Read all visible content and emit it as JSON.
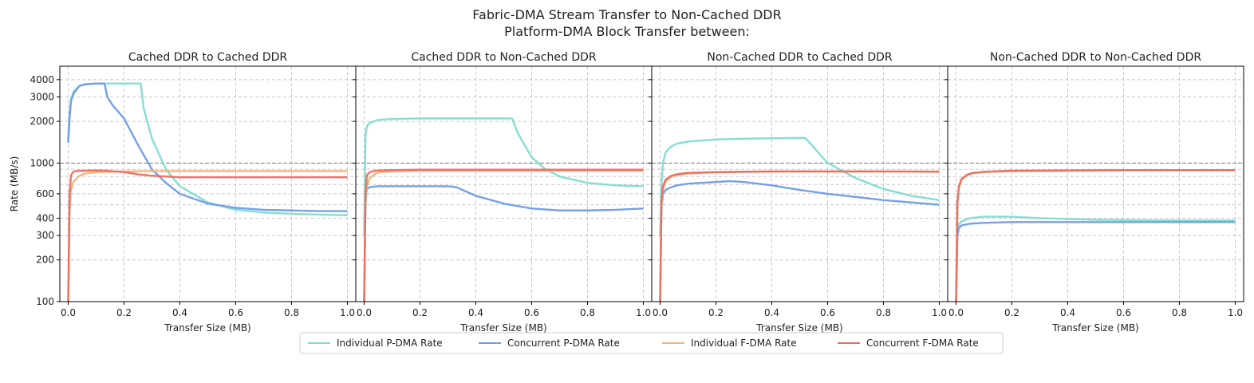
{
  "figure": {
    "suptitle_line1": "Fabric-DMA Stream Transfer to Non-Cached DDR",
    "suptitle_line2": "Platform-DMA Block Transfer between:"
  },
  "legend": {
    "entries": [
      {
        "label": "Individual P-DMA Rate",
        "color": "#7DDCD0"
      },
      {
        "label": "Concurrent P-DMA Rate",
        "color": "#6F9BE8"
      },
      {
        "label": "Individual F-DMA Rate",
        "color": "#F6B27A"
      },
      {
        "label": "Concurrent F-DMA Rate",
        "color": "#EE6A5E"
      }
    ],
    "placement": "bottom-center"
  },
  "colors": {
    "individual_pdma": "#7DDCD0",
    "concurrent_pdma": "#6F9BE8",
    "individual_fdma": "#F6B27A",
    "concurrent_fdma": "#EE6A5E",
    "reference_line": "#777777",
    "grid": "#c8c8c8"
  },
  "chart_data": [
    {
      "type": "line",
      "title": "Cached DDR to Cached DDR",
      "xlabel": "Transfer Size (MB)",
      "ylabel": "Rate (MB/s)",
      "xlim": [
        -0.03,
        1.03
      ],
      "ylim": [
        100,
        5000
      ],
      "yscale": "log",
      "xticks": [
        "0.0",
        "0.2",
        "0.4",
        "0.6",
        "0.8",
        "1.0"
      ],
      "yticks": [
        "100",
        "200",
        "300",
        "400",
        "600",
        "1000",
        "2000",
        "3000",
        "4000"
      ],
      "reference_y": 1000,
      "grid": true,
      "series": [
        {
          "name": "Individual P-DMA Rate",
          "x": [
            0,
            0.005,
            0.01,
            0.02,
            0.04,
            0.06,
            0.1,
            0.15,
            0.2,
            0.26,
            0.27,
            0.3,
            0.35,
            0.4,
            0.5,
            0.6,
            0.7,
            0.8,
            0.9,
            1.0
          ],
          "y": [
            1500,
            2300,
            2900,
            3300,
            3600,
            3700,
            3750,
            3750,
            3750,
            3750,
            2500,
            1500,
            900,
            680,
            520,
            460,
            440,
            430,
            425,
            420
          ]
        },
        {
          "name": "Concurrent P-DMA Rate",
          "x": [
            0,
            0.005,
            0.01,
            0.02,
            0.04,
            0.06,
            0.1,
            0.13,
            0.14,
            0.16,
            0.2,
            0.25,
            0.3,
            0.35,
            0.4,
            0.5,
            0.6,
            0.7,
            0.8,
            0.9,
            1.0
          ],
          "y": [
            1400,
            2100,
            2800,
            3200,
            3600,
            3700,
            3750,
            3750,
            3000,
            2600,
            2100,
            1350,
            900,
            720,
            600,
            510,
            475,
            460,
            455,
            450,
            450
          ]
        },
        {
          "name": "Individual F-DMA Rate",
          "x": [
            0,
            0.005,
            0.01,
            0.02,
            0.04,
            0.06,
            0.1,
            0.2,
            0.3,
            0.4,
            0.5,
            0.6,
            0.8,
            1.0
          ],
          "y": [
            100,
            450,
            640,
            740,
            810,
            840,
            860,
            870,
            875,
            875,
            875,
            875,
            875,
            875
          ]
        },
        {
          "name": "Concurrent F-DMA Rate",
          "x": [
            0,
            0.005,
            0.01,
            0.02,
            0.04,
            0.06,
            0.1,
            0.14,
            0.2,
            0.25,
            0.3,
            0.35,
            0.4,
            0.5,
            0.6,
            0.8,
            1.0
          ],
          "y": [
            100,
            600,
            820,
            870,
            880,
            880,
            885,
            880,
            860,
            830,
            810,
            800,
            790,
            790,
            790,
            790,
            790
          ]
        }
      ]
    },
    {
      "type": "line",
      "title": "Cached DDR to Non-Cached DDR",
      "xlabel": "Transfer Size (MB)",
      "ylabel": "",
      "xlim": [
        -0.03,
        1.03
      ],
      "ylim": [
        100,
        5000
      ],
      "yscale": "log",
      "xticks": [
        "0.0",
        "0.2",
        "0.4",
        "0.6",
        "0.8",
        "1.0"
      ],
      "yticks": [],
      "reference_y": 1000,
      "grid": true,
      "series": [
        {
          "name": "Individual P-DMA Rate",
          "x": [
            0,
            0.005,
            0.01,
            0.02,
            0.05,
            0.1,
            0.2,
            0.3,
            0.4,
            0.5,
            0.53,
            0.55,
            0.6,
            0.65,
            0.7,
            0.8,
            0.9,
            1.0
          ],
          "y": [
            300,
            1600,
            1850,
            1950,
            2050,
            2080,
            2100,
            2100,
            2100,
            2100,
            2100,
            1650,
            1100,
            900,
            800,
            720,
            690,
            680
          ]
        },
        {
          "name": "Concurrent P-DMA Rate",
          "x": [
            0,
            0.005,
            0.01,
            0.02,
            0.05,
            0.1,
            0.2,
            0.3,
            0.33,
            0.4,
            0.5,
            0.6,
            0.7,
            0.8,
            0.9,
            1.0
          ],
          "y": [
            100,
            560,
            650,
            670,
            680,
            680,
            680,
            680,
            670,
            580,
            510,
            470,
            455,
            455,
            460,
            470
          ]
        },
        {
          "name": "Individual F-DMA Rate",
          "x": [
            0,
            0.005,
            0.01,
            0.02,
            0.04,
            0.06,
            0.1,
            0.2,
            0.4,
            0.6,
            0.8,
            1.0
          ],
          "y": [
            100,
            520,
            690,
            780,
            840,
            860,
            870,
            880,
            880,
            880,
            880,
            880
          ]
        },
        {
          "name": "Concurrent F-DMA Rate",
          "x": [
            0,
            0.005,
            0.01,
            0.02,
            0.04,
            0.06,
            0.1,
            0.2,
            0.4,
            0.6,
            0.8,
            1.0
          ],
          "y": [
            100,
            620,
            820,
            860,
            880,
            885,
            890,
            895,
            895,
            895,
            895,
            895
          ]
        }
      ]
    },
    {
      "type": "line",
      "title": "Non-Cached DDR to Cached DDR",
      "xlabel": "Transfer Size (MB)",
      "ylabel": "",
      "xlim": [
        -0.03,
        1.03
      ],
      "ylim": [
        100,
        5000
      ],
      "yscale": "log",
      "xticks": [
        "0.0",
        "0.2",
        "0.4",
        "0.6",
        "0.8",
        "1.0"
      ],
      "yticks": [],
      "reference_y": 1000,
      "grid": true,
      "series": [
        {
          "name": "Individual P-DMA Rate",
          "x": [
            0,
            0.005,
            0.01,
            0.02,
            0.04,
            0.06,
            0.1,
            0.2,
            0.3,
            0.4,
            0.5,
            0.52,
            0.55,
            0.6,
            0.7,
            0.8,
            0.9,
            1.0
          ],
          "y": [
            300,
            700,
            1000,
            1200,
            1320,
            1380,
            1430,
            1480,
            1500,
            1510,
            1520,
            1520,
            1300,
            1000,
            780,
            650,
            580,
            540
          ]
        },
        {
          "name": "Concurrent P-DMA Rate",
          "x": [
            0,
            0.005,
            0.01,
            0.02,
            0.04,
            0.06,
            0.1,
            0.2,
            0.25,
            0.3,
            0.4,
            0.5,
            0.6,
            0.7,
            0.8,
            0.9,
            1.0
          ],
          "y": [
            100,
            500,
            600,
            640,
            670,
            690,
            710,
            730,
            740,
            730,
            690,
            640,
            600,
            570,
            540,
            520,
            500
          ]
        },
        {
          "name": "Individual F-DMA Rate",
          "x": [
            0,
            0.005,
            0.01,
            0.02,
            0.04,
            0.06,
            0.1,
            0.2,
            0.4,
            0.6,
            0.8,
            1.0
          ],
          "y": [
            100,
            480,
            640,
            740,
            800,
            820,
            840,
            860,
            870,
            870,
            870,
            870
          ]
        },
        {
          "name": "Concurrent F-DMA Rate",
          "x": [
            0,
            0.005,
            0.01,
            0.02,
            0.04,
            0.06,
            0.1,
            0.2,
            0.4,
            0.6,
            0.8,
            1.0
          ],
          "y": [
            100,
            520,
            680,
            760,
            810,
            830,
            850,
            860,
            870,
            870,
            870,
            865
          ]
        }
      ]
    },
    {
      "type": "line",
      "title": "Non-Cached DDR to Non-Cached DDR",
      "xlabel": "Transfer Size (MB)",
      "ylabel": "",
      "xlim": [
        -0.03,
        1.03
      ],
      "ylim": [
        100,
        5000
      ],
      "yscale": "log",
      "xticks": [
        "0.0",
        "0.2",
        "0.4",
        "0.6",
        "0.8",
        "1.0"
      ],
      "yticks": [],
      "reference_y": 1000,
      "grid": true,
      "series": [
        {
          "name": "Individual P-DMA Rate",
          "x": [
            0,
            0.005,
            0.01,
            0.02,
            0.05,
            0.1,
            0.15,
            0.2,
            0.3,
            0.4,
            0.5,
            0.6,
            0.7,
            0.8,
            0.9,
            1.0
          ],
          "y": [
            100,
            330,
            360,
            380,
            400,
            410,
            410,
            410,
            400,
            395,
            390,
            388,
            386,
            385,
            385,
            385
          ]
        },
        {
          "name": "Concurrent P-DMA Rate",
          "x": [
            0,
            0.005,
            0.01,
            0.02,
            0.05,
            0.1,
            0.2,
            0.4,
            0.6,
            0.8,
            1.0
          ],
          "y": [
            100,
            300,
            340,
            355,
            365,
            370,
            375,
            375,
            375,
            375,
            375
          ]
        },
        {
          "name": "Individual F-DMA Rate",
          "x": [
            0,
            0.005,
            0.01,
            0.02,
            0.04,
            0.06,
            0.1,
            0.2,
            0.4,
            0.6,
            0.8,
            1.0
          ],
          "y": [
            100,
            500,
            660,
            760,
            820,
            845,
            860,
            875,
            880,
            885,
            885,
            885
          ]
        },
        {
          "name": "Concurrent F-DMA Rate",
          "x": [
            0,
            0.005,
            0.01,
            0.02,
            0.04,
            0.06,
            0.1,
            0.2,
            0.4,
            0.6,
            0.8,
            1.0
          ],
          "y": [
            100,
            520,
            680,
            770,
            825,
            850,
            865,
            880,
            885,
            890,
            890,
            890
          ]
        }
      ]
    }
  ]
}
